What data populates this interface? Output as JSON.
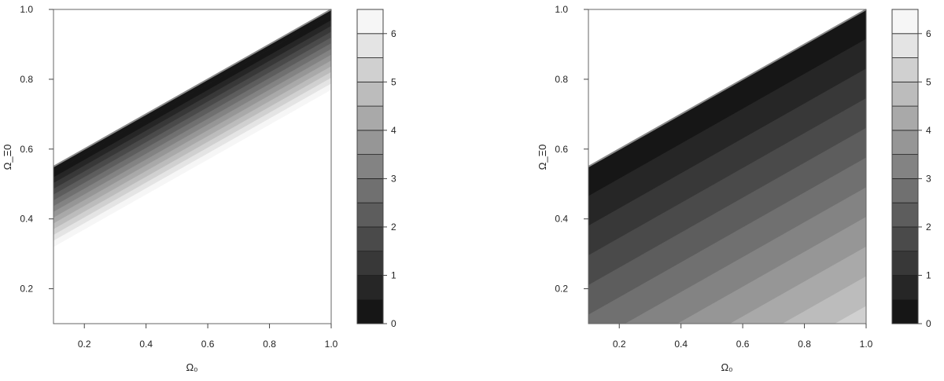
{
  "chart_data": [
    {
      "type": "heatmap",
      "subtype": "filled-contour",
      "xlabel": "Ω₀",
      "ylabel": "Ω_Ξ0",
      "xlim": [
        0.1,
        1.0
      ],
      "ylim": [
        0.1,
        1.0
      ],
      "x_ticks": [
        "0.2",
        "0.4",
        "0.6",
        "0.8",
        "1.0"
      ],
      "y_ticks": [
        "0.2",
        "0.4",
        "0.6",
        "0.8",
        "1.0"
      ],
      "boundary_line": {
        "from": [
          0.1,
          0.55
        ],
        "to": [
          1.0,
          1.0
        ]
      },
      "colorbar": {
        "range": [
          0,
          6.5
        ],
        "level_step": 0.5,
        "tick_labels": [
          "0",
          "1",
          "2",
          "3",
          "4",
          "5",
          "6"
        ]
      },
      "bands": {
        "count": 13,
        "zero_offset": 0.015,
        "width": 0.0165
      }
    },
    {
      "type": "heatmap",
      "subtype": "filled-contour",
      "xlabel": "Ω₀",
      "ylabel": "Ω_Ξ0",
      "xlim": [
        0.1,
        1.0
      ],
      "ylim": [
        0.1,
        1.0
      ],
      "x_ticks": [
        "0.2",
        "0.4",
        "0.6",
        "0.8",
        "1.0"
      ],
      "y_ticks": [
        "0.2",
        "0.4",
        "0.6",
        "0.8",
        "1.0"
      ],
      "boundary_line": {
        "from": [
          0.1,
          0.55
        ],
        "to": [
          1.0,
          1.0
        ]
      },
      "colorbar": {
        "range": [
          0,
          6.5
        ],
        "level_step": 0.5,
        "tick_labels": [
          "0",
          "1",
          "2",
          "3",
          "4",
          "5",
          "6"
        ]
      },
      "bands": {
        "count": 13,
        "zero_offset": 0.0,
        "width": 0.085
      }
    }
  ],
  "colors": {
    "levels": [
      "#161616",
      "#262626",
      "#383838",
      "#4a4a4a",
      "#5d5d5d",
      "#707070",
      "#838383",
      "#969696",
      "#a9a9a9",
      "#bcbcbc",
      "#d0d0d0",
      "#e4e4e4",
      "#f6f6f6"
    ],
    "background": "#ffffff",
    "frame": "#666666",
    "boundary": "#8a8a8a"
  }
}
